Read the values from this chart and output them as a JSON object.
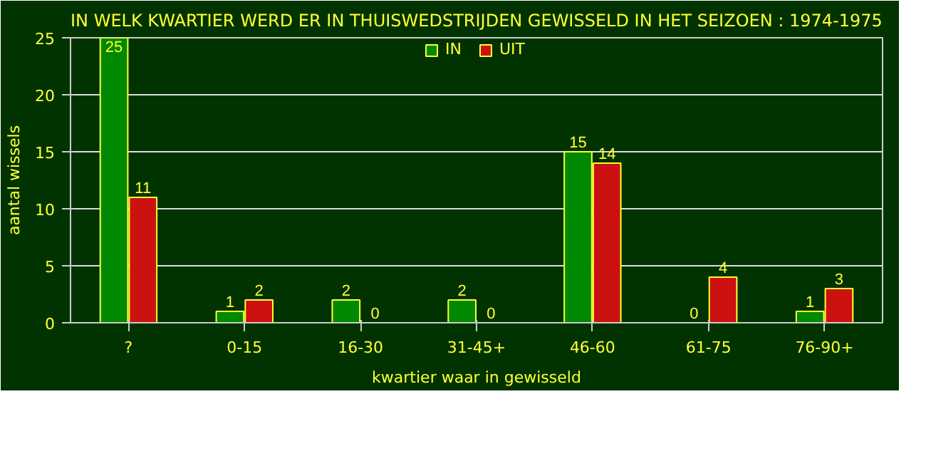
{
  "chart_data": {
    "type": "bar",
    "title": "IN WELK KWARTIER WERD ER IN THUISWEDSTRIJDEN GEWISSELD IN HET SEIZOEN : 1974-1975",
    "xlabel": "kwartier waar in gewisseld",
    "ylabel": "aantal wissels",
    "categories": [
      "?",
      "0-15",
      "16-30",
      "31-45+",
      "46-60",
      "61-75",
      "76-90+"
    ],
    "series": [
      {
        "name": "IN",
        "color": "#008800",
        "values": [
          25,
          1,
          2,
          2,
          15,
          0,
          1
        ]
      },
      {
        "name": "UIT",
        "color": "#cc1111",
        "values": [
          11,
          2,
          0,
          0,
          14,
          4,
          3
        ]
      }
    ],
    "ylim": [
      0,
      25
    ],
    "yticks": [
      0,
      5,
      10,
      15,
      20,
      25
    ],
    "grid": "y",
    "legend": "top",
    "data_labels": true
  }
}
